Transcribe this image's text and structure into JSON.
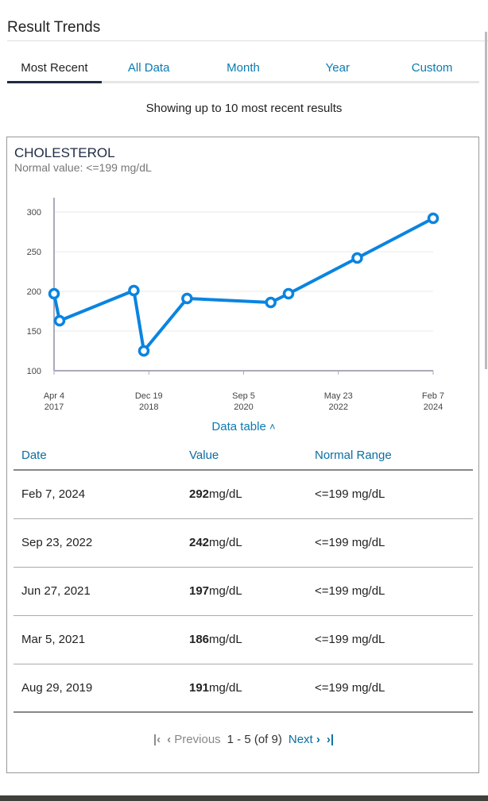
{
  "header": {
    "title": "Result Trends"
  },
  "tabs": [
    {
      "label": "Most Recent",
      "active": true
    },
    {
      "label": "All Data"
    },
    {
      "label": "Month"
    },
    {
      "label": "Year"
    },
    {
      "label": "Custom"
    }
  ],
  "showing": "Showing up to 10 most recent results",
  "card": {
    "title": "CHOLESTEROL",
    "normal": "Normal value: <=199 mg/dL",
    "data_table_label": "Data table"
  },
  "chart_data": {
    "type": "line",
    "title": "CHOLESTEROL",
    "ylabel": "mg/dL",
    "ylim": [
      100,
      300
    ],
    "yticks": [
      100,
      150,
      200,
      250,
      300
    ],
    "xlim": [
      2017.26,
      2024.1
    ],
    "xticks": [
      {
        "x": 2017.26,
        "l1": "Apr 4",
        "l2": "2017"
      },
      {
        "x": 2018.97,
        "l1": "Dec 19",
        "l2": "2018"
      },
      {
        "x": 2020.68,
        "l1": "Sep 5",
        "l2": "2020"
      },
      {
        "x": 2022.39,
        "l1": "May 23",
        "l2": "2022"
      },
      {
        "x": 2024.1,
        "l1": "Feb 7",
        "l2": "2024"
      }
    ],
    "x": [
      2017.26,
      2017.36,
      2018.7,
      2018.88,
      2019.66,
      2021.17,
      2021.49,
      2022.73,
      2024.1
    ],
    "values": [
      197,
      163,
      201,
      125,
      191,
      186,
      197,
      242,
      292
    ],
    "color": "#0a84e0"
  },
  "table": {
    "headers": [
      "Date",
      "Value",
      "Normal Range"
    ],
    "rows": [
      {
        "date": "Feb 7, 2024",
        "value": "292",
        "unit": "mg/dL",
        "range": "<=199 mg/dL"
      },
      {
        "date": "Sep 23, 2022",
        "value": "242",
        "unit": "mg/dL",
        "range": "<=199 mg/dL"
      },
      {
        "date": "Jun 27, 2021",
        "value": "197",
        "unit": "mg/dL",
        "range": "<=199 mg/dL"
      },
      {
        "date": "Mar 5, 2021",
        "value": "186",
        "unit": "mg/dL",
        "range": "<=199 mg/dL"
      },
      {
        "date": "Aug 29, 2019",
        "value": "191",
        "unit": "mg/dL",
        "range": "<=199 mg/dL"
      }
    ]
  },
  "pager": {
    "previous": "Previous",
    "range": "1 - 5 (of 9)",
    "next": "Next"
  }
}
